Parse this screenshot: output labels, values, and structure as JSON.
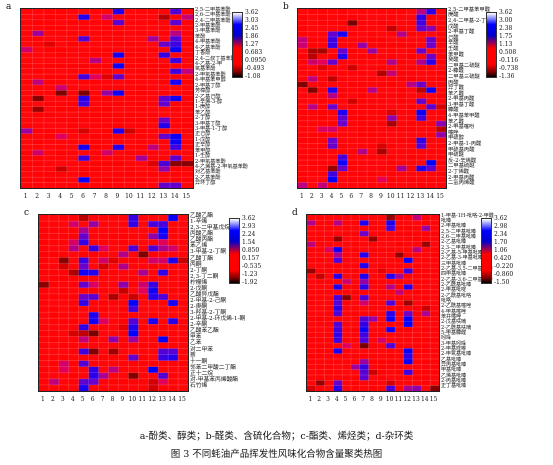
{
  "caption_line1": "a-酚类、醇类；b-醛类、含硫化合物；c-酯类、烯烃类；d-杂环类",
  "caption_line2": "图 3 不同蚝油产品挥发性风味化合物含量聚类热图",
  "colors": {
    "low": "#000000",
    "mid": "#ff0000",
    "high": "#0000ff"
  },
  "chart_data": [
    {
      "type": "heatmap",
      "panel": "a",
      "columns": [
        "1",
        "2",
        "3",
        "4",
        "5",
        "6",
        "7",
        "8",
        "9",
        "10",
        "11",
        "12",
        "13",
        "14",
        "15"
      ],
      "rows": [
        "2,5-二甲基苯酚",
        "2,6-二甲基苯酚",
        "2,4-二甲基苯酚",
        "2-甲基苯酚",
        "3-甲基苯酚",
        "苯酚",
        "4-甲基苯酚",
        "4-乙基苯酚",
        "丁香酚",
        "2,4-二叔丁基苯酚",
        "4-乙基-2-甲",
        "氧基苯酚",
        "2-甲氧基苯酚",
        "4-甲基苯甲醇",
        "2-甲基丁醇",
        "芳樟醇",
        "2-乙基己醇",
        "1-辛烯-3-醇",
        "1-庚醇",
        "苯乙醇",
        "2-丁醇",
        "3-甲基丁醇",
        "3-甲基-1-丁醇",
        "正己醇",
        "1-戊醇",
        "正辛醇",
        "苯甲醇",
        "1-壬醇",
        "2-甲氧基苯酚",
        "4-乙烯基-2-甲氧基苯酚",
        "对乙基苯酚",
        "2-乙基苯酚",
        "异环丁醇"
      ],
      "legend_ticks": [
        "3.62",
        "3.03",
        "2.45",
        "1.86",
        "1.27",
        "0.683",
        "0.0950",
        "-0.493",
        "-1.08"
      ]
    },
    {
      "type": "heatmap",
      "panel": "b",
      "columns": [
        "1",
        "2",
        "3",
        "4",
        "5",
        "6",
        "7",
        "8",
        "9",
        "10",
        "11",
        "12",
        "13",
        "14",
        "15"
      ],
      "rows": [
        "2,5-二甲基苯甲醛",
        "庚醛",
        "2,4-二甲基-2-丁烯醛",
        "戊醛",
        "2-甲基丁醛",
        "己醛",
        "辛醛",
        "壬醛",
        "苯甲醛",
        "癸醛",
        "二甲基二硫醚",
        "2-糠醛",
        "二甲基三硫醚",
        "丙醛",
        "异丁醛",
        "苯乙醛",
        "2-甲基丙醛",
        "3-甲基丁醛",
        "糠醛",
        "4-甲基苯甲醛",
        "苯乙醛",
        "2-甲基噻吩",
        "噻唑",
        "甲硫醇",
        "2-甲基-1-丙醛",
        "甲硫基丙醛",
        "甲硫醚",
        "反-2-辛烯醛",
        "二甲基硫醚",
        "2-丁烯醛",
        "2-甲基丙醛",
        "二氢丙烯醛"
      ],
      "legend_ticks": [
        "3.62",
        "3.00",
        "2.38",
        "1.75",
        "1.13",
        "0.508",
        "-0.116",
        "-0.738",
        "-1.36"
      ]
    },
    {
      "type": "heatmap",
      "panel": "c",
      "columns": [
        "1",
        "2",
        "3",
        "4",
        "5",
        "6",
        "7",
        "8",
        "9",
        "10",
        "11",
        "12",
        "13",
        "14",
        "15"
      ],
      "rows": [
        "乙酸乙酯",
        "1-辛烯",
        "2,3-二甲基戊烷",
        "丙酸乙酯",
        "乙酸丙酯",
        "苯乙烯",
        "3-甲基-2-丁酮",
        "乙酸丁酯",
        "丙酮",
        "2-丁酮",
        "2,3-丁二酮",
        "柠檬烯",
        "2-戊酮",
        "乙酸异戊酯",
        "2-甲基-2-己酮",
        "2-庚酮",
        "3-羟基-2-丁酮",
        "2-甲基-2-环戊烯-1-酮",
        "2-辛酮",
        "乙酸苯乙酯",
        "甲苯",
        "乙苯",
        "对二甲苯",
        "萘",
        "十一酮",
        "邻苯二甲酸二丁酯",
        "正十二烷",
        "对-甲基苯丙烯酸酯",
        "石竹烯"
      ],
      "legend_ticks": [
        "3.62",
        "2.93",
        "2.24",
        "1.54",
        "0.850",
        "0.157",
        "-0.535",
        "-1.23",
        "-1.92"
      ]
    },
    {
      "type": "heatmap",
      "panel": "d",
      "columns": [
        "1",
        "2",
        "3",
        "4",
        "5",
        "6",
        "7",
        "8",
        "9",
        "10",
        "11",
        "12",
        "13",
        "14",
        "15"
      ],
      "rows": [
        "1-甲基-1H-吡咯-2-甲醛",
        "吡嗪",
        "2-甲基吡嗪",
        "2,5-二甲基吡嗪",
        "2,6-二甲基吡嗪",
        "2-乙基吡嗪",
        "2,3-二甲基吡嗪",
        "2-乙基-5-甲基吡嗪",
        "2-乙基-3-甲基吡嗪",
        "三甲基吡嗪",
        "2-乙基-3,5-二甲基吡嗪",
        "四甲基吡嗪",
        "2-乙基-3,6-二甲基吡嗪",
        "2-乙酰基吡嗪",
        "2-甲基吡啶",
        "2-乙酰基吡咯",
        "吡咯",
        "2-乙酰基噻唑",
        "4-甲基噻唑",
        "苯并噻唑",
        "2-戊基呋喃",
        "2-乙酰基呋喃",
        "5-甲基糠醛",
        "吲哚",
        "3-甲基吲哚",
        "2-甲基喹啉",
        "2-甲氧基吡嗪",
        "乙基吡嗪",
        "异丙基吡嗪",
        "甲基吡嗪",
        "乙烯基吡嗪",
        "2-丙基吡嗪",
        "正丁基吡嗪"
      ],
      "legend_ticks": [
        "3.62",
        "2.98",
        "2.34",
        "1.70",
        "1.06",
        "0.420",
        "-0.220",
        "-0.860",
        "-1.50"
      ]
    }
  ]
}
